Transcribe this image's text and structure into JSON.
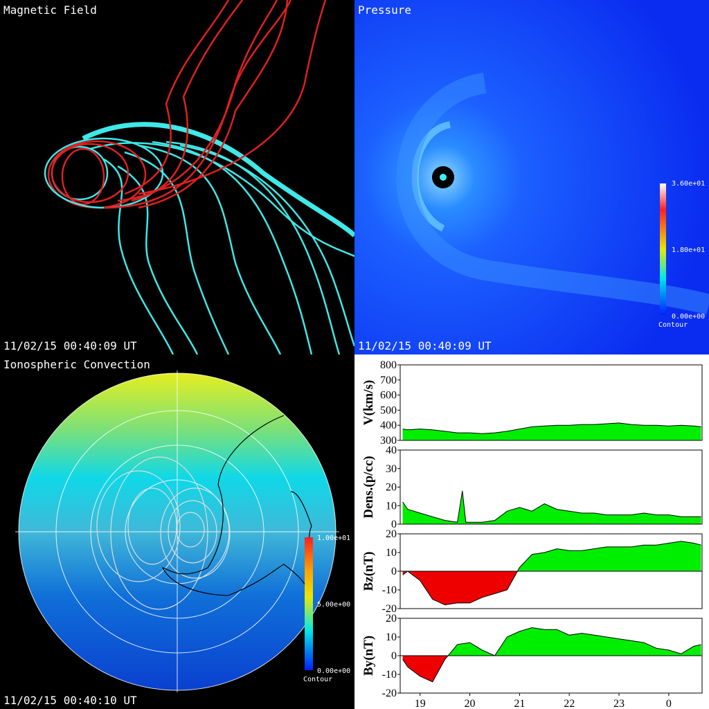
{
  "panels": [
    {
      "title": "Magnetic Field",
      "timestamp": "11/02/15 00:40:09 UT"
    },
    {
      "title": "Pressure",
      "timestamp": "11/02/15 00:40:09 UT",
      "colorbar": {
        "labels": [
          "3.60e+01",
          "1.80e+01",
          "0.00e+00"
        ],
        "caption": "Contour"
      }
    },
    {
      "title": "Ionospheric Convection",
      "timestamp": "11/02/15 00:40:10 UT",
      "colorbar": {
        "labels": [
          "1.00e+01",
          "5.00e+00",
          "0.00e+00"
        ],
        "caption": "Contour"
      }
    }
  ],
  "chart_data": [
    {
      "type": "area",
      "y_label": "V(km/s)",
      "color": "#00ee00",
      "negative_color": "#ee0000",
      "x": [
        18.65,
        18.75,
        19,
        19.25,
        19.5,
        19.75,
        20,
        20.25,
        20.5,
        20.75,
        21,
        21.25,
        21.5,
        21.75,
        22,
        22.25,
        22.5,
        22.75,
        23,
        23.25,
        23.5,
        23.75,
        24,
        24.25,
        24.5,
        24.65
      ],
      "values": [
        375,
        370,
        375,
        370,
        360,
        350,
        350,
        345,
        350,
        360,
        375,
        390,
        395,
        400,
        400,
        405,
        405,
        410,
        415,
        405,
        400,
        400,
        395,
        400,
        395,
        390
      ],
      "xlim": [
        18.6,
        24.67
      ],
      "ylim": [
        300,
        800
      ],
      "yticks": [
        300,
        400,
        500,
        600,
        700,
        800
      ]
    },
    {
      "type": "area",
      "y_label": "Dens.(p/cc)",
      "color": "#00ee00",
      "negative_color": "#ee0000",
      "x": [
        18.65,
        18.75,
        19,
        19.25,
        19.5,
        19.75,
        19.85,
        19.92,
        20,
        20.25,
        20.5,
        20.75,
        21,
        21.25,
        21.5,
        21.75,
        22,
        22.25,
        22.5,
        22.75,
        23,
        23.25,
        23.5,
        23.75,
        24,
        24.25,
        24.5,
        24.65
      ],
      "values": [
        12,
        8,
        6,
        4,
        2,
        1,
        18,
        1,
        1,
        1,
        2,
        7,
        9,
        7,
        11,
        8,
        7,
        6,
        6,
        5,
        5,
        5,
        6,
        5,
        5,
        4,
        4,
        4
      ],
      "xlim": [
        18.6,
        24.67
      ],
      "ylim": [
        0,
        40
      ],
      "yticks": [
        0,
        10,
        20,
        30,
        40
      ]
    },
    {
      "type": "area",
      "y_label": "Bz(nT)",
      "color": "#00ee00",
      "negative_color": "#ee0000",
      "x": [
        18.65,
        18.75,
        19,
        19.25,
        19.5,
        19.75,
        20,
        20.25,
        20.5,
        20.75,
        21,
        21.25,
        21.5,
        21.75,
        22,
        22.25,
        22.5,
        22.75,
        23,
        23.25,
        23.5,
        23.75,
        24,
        24.25,
        24.5,
        24.65
      ],
      "values": [
        -2,
        0,
        -5,
        -15,
        -18,
        -17,
        -17,
        -14,
        -12,
        -10,
        2,
        9,
        10,
        12,
        11,
        11,
        12,
        13,
        13,
        13,
        14,
        14,
        15,
        16,
        15,
        14
      ],
      "xlim": [
        18.6,
        24.67
      ],
      "ylim": [
        -20,
        20
      ],
      "yticks": [
        -20,
        -10,
        0,
        10,
        20
      ]
    },
    {
      "type": "area",
      "y_label": "By(nT)",
      "color": "#00ee00",
      "negative_color": "#ee0000",
      "x": [
        18.65,
        18.75,
        19,
        19.25,
        19.5,
        19.75,
        20,
        20.25,
        20.5,
        20.75,
        21,
        21.25,
        21.5,
        21.75,
        22,
        22.25,
        22.5,
        22.75,
        23,
        23.25,
        23.5,
        23.75,
        24,
        24.25,
        24.5,
        24.65
      ],
      "values": [
        -2,
        -6,
        -11,
        -14,
        -2,
        6,
        7,
        3,
        0,
        10,
        13,
        15,
        14,
        14,
        11,
        12,
        11,
        10,
        9,
        8,
        7,
        4,
        3,
        1,
        5,
        6
      ],
      "xlim": [
        18.6,
        24.67
      ],
      "ylim": [
        -20,
        20
      ],
      "yticks": [
        -20,
        -10,
        0,
        10,
        20
      ],
      "xticks": [
        19,
        20,
        21,
        22,
        23,
        {
          "value": 24,
          "label": "0"
        }
      ]
    }
  ]
}
